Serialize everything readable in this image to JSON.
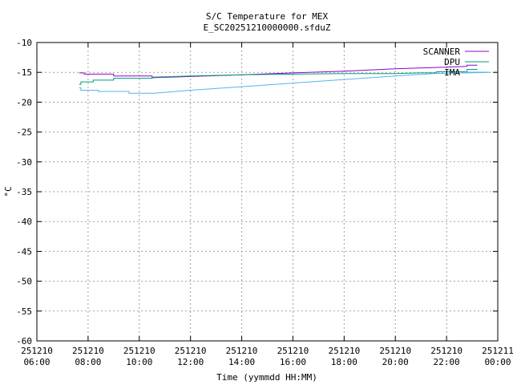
{
  "chart_data": {
    "type": "line",
    "title": "S/C Temperature for MEX",
    "subtitle": "E_SC20251210000000.sfduZ",
    "xlabel": "Time (yymmdd HH:MM)",
    "ylabel": "°C",
    "xlim": [
      6,
      24
    ],
    "ylim": [
      -60,
      -10
    ],
    "grid": true,
    "legend_position": "top-right",
    "yticks": [
      -10,
      -15,
      -20,
      -25,
      -30,
      -35,
      -40,
      -45,
      -50,
      -55,
      -60
    ],
    "xticks": [
      {
        "x": 6,
        "line1": "251210",
        "line2": "06:00"
      },
      {
        "x": 8,
        "line1": "251210",
        "line2": "08:00"
      },
      {
        "x": 10,
        "line1": "251210",
        "line2": "10:00"
      },
      {
        "x": 12,
        "line1": "251210",
        "line2": "12:00"
      },
      {
        "x": 14,
        "line1": "251210",
        "line2": "14:00"
      },
      {
        "x": 16,
        "line1": "251210",
        "line2": "16:00"
      },
      {
        "x": 18,
        "line1": "251210",
        "line2": "18:00"
      },
      {
        "x": 20,
        "line1": "251210",
        "line2": "20:00"
      },
      {
        "x": 22,
        "line1": "251210",
        "line2": "22:00"
      },
      {
        "x": 24,
        "line1": "251211",
        "line2": "00:00"
      }
    ],
    "series": [
      {
        "name": "SCANNER",
        "color": "#9400d3",
        "points": [
          [
            7.65,
            -15.1
          ],
          [
            7.85,
            -15.1
          ],
          [
            7.85,
            -15.3
          ],
          [
            9.0,
            -15.3
          ],
          [
            9.0,
            -15.6
          ],
          [
            10.5,
            -15.6
          ],
          [
            10.5,
            -15.9
          ],
          [
            12.0,
            -15.7
          ],
          [
            14.0,
            -15.4
          ],
          [
            16.0,
            -15.1
          ],
          [
            18.0,
            -14.8
          ],
          [
            20.0,
            -14.4
          ],
          [
            21.5,
            -14.2
          ],
          [
            22.8,
            -14.0
          ],
          [
            22.8,
            -13.8
          ],
          [
            23.2,
            -13.8
          ]
        ]
      },
      {
        "name": "DPU",
        "color": "#009e73",
        "points": [
          [
            7.65,
            -17.0
          ],
          [
            7.72,
            -17.0
          ],
          [
            7.72,
            -16.6
          ],
          [
            8.2,
            -16.6
          ],
          [
            8.2,
            -16.3
          ],
          [
            9.0,
            -16.3
          ],
          [
            9.0,
            -16.0
          ],
          [
            10.5,
            -16.0
          ],
          [
            10.5,
            -15.8
          ],
          [
            12.0,
            -15.6
          ],
          [
            14.0,
            -15.4
          ],
          [
            16.0,
            -15.3
          ],
          [
            18.0,
            -15.2
          ],
          [
            20.0,
            -15.2
          ],
          [
            21.0,
            -15.1
          ],
          [
            21.6,
            -15.1
          ],
          [
            21.6,
            -14.9
          ],
          [
            22.8,
            -14.9
          ],
          [
            22.8,
            -14.5
          ],
          [
            23.2,
            -14.5
          ]
        ]
      },
      {
        "name": "IMA",
        "color": "#56b4e9",
        "points": [
          [
            7.65,
            -17.6
          ],
          [
            7.72,
            -17.6
          ],
          [
            7.72,
            -18.0
          ],
          [
            8.4,
            -18.0
          ],
          [
            8.4,
            -18.2
          ],
          [
            9.6,
            -18.2
          ],
          [
            9.6,
            -18.5
          ],
          [
            10.6,
            -18.5
          ],
          [
            12.0,
            -18.0
          ],
          [
            14.0,
            -17.4
          ],
          [
            16.0,
            -16.8
          ],
          [
            18.0,
            -16.2
          ],
          [
            20.0,
            -15.6
          ],
          [
            21.5,
            -15.2
          ],
          [
            23.7,
            -15.0
          ]
        ]
      }
    ]
  }
}
